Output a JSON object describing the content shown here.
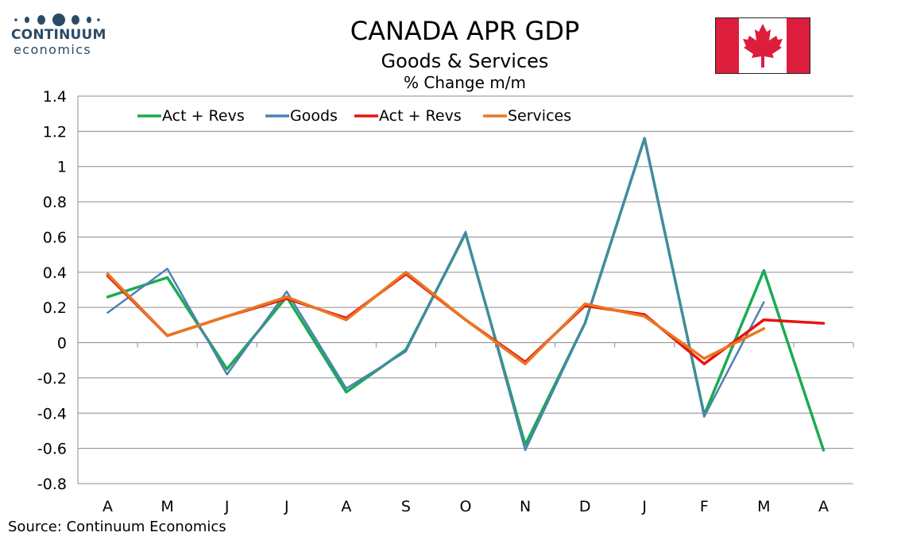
{
  "header": {
    "title": "CANADA APR GDP",
    "subtitle": "Goods & Services",
    "subtitle2": "% Change m/m"
  },
  "logo": {
    "name": "CONTINUUM",
    "sub": "economics"
  },
  "source": "Source: Continuum Economics",
  "colors": {
    "green": "#1aab53",
    "blue": "#4f81b4",
    "red": "#e8140f",
    "orange": "#e87722",
    "grid": "#8c8c8c",
    "flag_red": "#dc1e3c",
    "logo": "#2c4a66"
  },
  "chart_data": {
    "type": "line",
    "categories": [
      "A",
      "M",
      "J",
      "J",
      "A",
      "S",
      "O",
      "N",
      "D",
      "J",
      "F",
      "M",
      "A"
    ],
    "ylim": [
      -0.8,
      1.4
    ],
    "yticks": [
      1.4,
      1.2,
      1,
      0.8,
      0.6,
      0.4,
      0.2,
      0,
      -0.2,
      -0.4,
      -0.6,
      -0.8
    ],
    "grid": true,
    "legend_position": "top-left",
    "series": [
      {
        "name": "Act + Revs",
        "color": "#1aab53",
        "width": 3.5,
        "values": [
          0.26,
          0.37,
          -0.15,
          0.26,
          -0.28,
          -0.04,
          0.62,
          -0.58,
          0.11,
          1.16,
          -0.41,
          0.41,
          -0.61
        ]
      },
      {
        "name": "Goods",
        "color": "#4f81b4",
        "width": 2.5,
        "values": [
          0.17,
          0.42,
          -0.18,
          0.29,
          -0.26,
          -0.05,
          0.63,
          -0.61,
          0.11,
          1.16,
          -0.42,
          0.23,
          null
        ]
      },
      {
        "name": "Act + Revs",
        "color": "#e8140f",
        "width": 3.5,
        "values": [
          0.38,
          0.04,
          0.15,
          0.25,
          0.14,
          0.39,
          0.13,
          -0.11,
          0.21,
          0.16,
          -0.12,
          0.13,
          0.11
        ]
      },
      {
        "name": "Services",
        "color": "#e87722",
        "width": 3.5,
        "values": [
          0.39,
          0.04,
          0.15,
          0.26,
          0.13,
          0.4,
          0.13,
          -0.12,
          0.22,
          0.15,
          -0.09,
          0.08,
          null
        ]
      }
    ]
  }
}
